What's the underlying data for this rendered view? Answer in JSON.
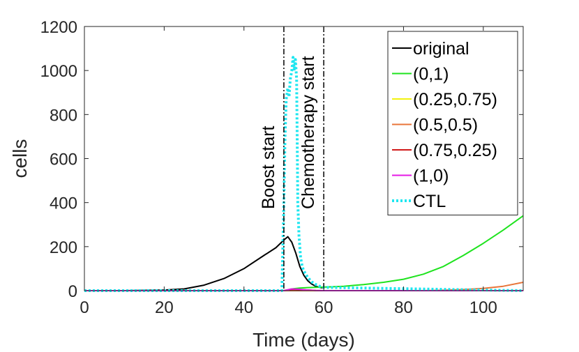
{
  "chart_data": {
    "type": "line",
    "title": "",
    "xlabel": "Time (days)",
    "ylabel": "cells",
    "xlim": [
      0,
      110
    ],
    "ylim": [
      0,
      1200
    ],
    "xticks": [
      0,
      20,
      40,
      60,
      80,
      100
    ],
    "yticks": [
      0,
      200,
      400,
      600,
      800,
      1000,
      1200
    ],
    "grid": false,
    "legend_position": "top-right",
    "annotations": [
      {
        "x": 50,
        "text": "Boost start"
      },
      {
        "x": 60,
        "text": "Chemotherapy start"
      }
    ],
    "series": [
      {
        "name": "original",
        "color": "#000000",
        "style": "solid",
        "x": [
          0,
          10,
          20,
          25,
          30,
          35,
          40,
          45,
          48,
          50,
          51,
          52,
          53,
          54,
          55,
          56,
          57,
          58,
          59,
          60
        ],
        "y": [
          0,
          0,
          3,
          8,
          25,
          55,
          100,
          160,
          195,
          230,
          245,
          220,
          170,
          110,
          70,
          45,
          30,
          20,
          15,
          12
        ]
      },
      {
        "name": "(0,1)",
        "color": "#1ee31e",
        "style": "solid",
        "x": [
          50,
          52,
          54,
          56,
          58,
          60,
          65,
          70,
          75,
          80,
          85,
          90,
          95,
          100,
          105,
          110
        ],
        "y": [
          0,
          8,
          12,
          14,
          15,
          16,
          20,
          28,
          38,
          52,
          75,
          110,
          160,
          215,
          275,
          340
        ]
      },
      {
        "name": "(0.25,0.75)",
        "color": "#f2f20d",
        "style": "solid",
        "x": [
          0,
          110
        ],
        "y": [
          0,
          0
        ]
      },
      {
        "name": "(0.5,0.5)",
        "color": "#e8753a",
        "style": "solid",
        "x": [
          0,
          85,
          90,
          95,
          100,
          105,
          110
        ],
        "y": [
          0,
          0,
          2,
          5,
          10,
          20,
          38
        ]
      },
      {
        "name": "(0.75,0.25)",
        "color": "#d11919",
        "style": "solid",
        "x": [
          0,
          50,
          52,
          55,
          58,
          60,
          110
        ],
        "y": [
          0,
          0,
          6,
          4,
          1,
          0,
          0
        ]
      },
      {
        "name": "(1,0)",
        "color": "#e619e6",
        "style": "solid",
        "x": [
          0,
          50,
          52,
          54,
          56,
          58,
          60,
          110
        ],
        "y": [
          0,
          0,
          8,
          6,
          3,
          1,
          0,
          0
        ]
      },
      {
        "name": "CTL",
        "color": "#1ee6f0",
        "style": "dotted",
        "x": [
          0,
          49.5,
          50,
          50.3,
          50.6,
          51,
          51.3,
          51.6,
          52,
          52.3,
          52.6,
          52.9,
          53.2,
          53.5,
          53.8,
          54.2,
          54.6,
          55,
          56,
          57,
          58,
          59,
          60,
          110
        ],
        "y": [
          0,
          0,
          400,
          700,
          870,
          920,
          880,
          960,
          1000,
          1060,
          1000,
          1050,
          960,
          400,
          250,
          150,
          110,
          90,
          60,
          40,
          28,
          20,
          15,
          0
        ]
      }
    ]
  }
}
